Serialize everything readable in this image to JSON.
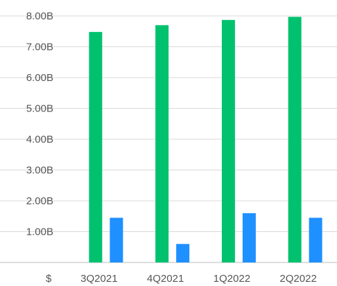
{
  "chart_data": {
    "type": "bar",
    "categories": [
      "3Q2021",
      "4Q2021",
      "1Q2022",
      "2Q2022"
    ],
    "series": [
      {
        "color": "#00c16e",
        "values": [
          7.48,
          7.7,
          7.87,
          7.97
        ]
      },
      {
        "color": "#1e90ff",
        "values": [
          1.45,
          0.6,
          1.6,
          1.45
        ]
      }
    ],
    "y_ticks": [
      {
        "value": 0,
        "label": "$"
      },
      {
        "value": 1,
        "label": "1.00B"
      },
      {
        "value": 2,
        "label": "2.00B"
      },
      {
        "value": 3,
        "label": "3.00B"
      },
      {
        "value": 4,
        "label": "4.00B"
      },
      {
        "value": 5,
        "label": "5.00B"
      },
      {
        "value": 6,
        "label": "6.00B"
      },
      {
        "value": 7,
        "label": "7.00B"
      },
      {
        "value": 8,
        "label": "8.00B"
      }
    ],
    "ylim": [
      0,
      8
    ],
    "grid": true,
    "legend": "none"
  }
}
